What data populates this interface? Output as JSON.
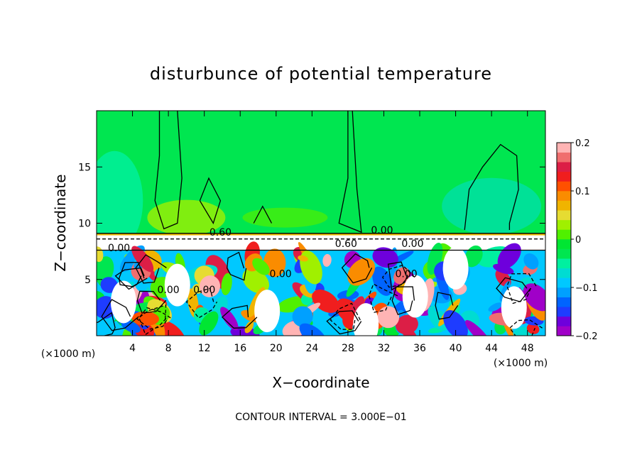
{
  "chart_data": {
    "type": "heatmap",
    "title": "disturbunce of potential temperature",
    "xlabel": "X−coordinate",
    "ylabel": "Z−coordinate",
    "x_unit": "(×1000 m)",
    "y_unit": "(×1000 m)",
    "xlim": [
      0,
      50
    ],
    "ylim": [
      0,
      20
    ],
    "x_ticks": [
      4,
      8,
      12,
      16,
      20,
      24,
      28,
      32,
      36,
      40,
      44,
      48
    ],
    "y_ticks": [
      5,
      10,
      15
    ],
    "note": "CONTOUR INTERVAL = 3.000E−01",
    "colorbar": {
      "range": [
        -0.2,
        0.2
      ],
      "tick_values": [
        0.2,
        0.1,
        0,
        -0.1,
        -0.2
      ],
      "tick_labels": [
        "0.2",
        "0.1",
        "0",
        "−0.1",
        "−0.2"
      ],
      "colors": [
        "#a000c8",
        "#6e00dc",
        "#1e3cff",
        "#0064ff",
        "#00a0ff",
        "#00c8ff",
        "#00dcd2",
        "#00f0a0",
        "#00e650",
        "#00e632",
        "#50f000",
        "#a0f000",
        "#e6dc32",
        "#f0b400",
        "#fa8c00",
        "#ff5000",
        "#f01e1e",
        "#dc1e46",
        "#f06e6e",
        "#ffb4b4"
      ]
    },
    "contour_labels": [
      {
        "text": "0.60",
        "x": 13.8,
        "y": 8.9
      },
      {
        "text": "0.00",
        "x": 31.8,
        "y": 9.1
      },
      {
        "text": "0.60",
        "x": 27.8,
        "y": 7.9
      },
      {
        "text": "0.00",
        "x": 35.2,
        "y": 7.9
      },
      {
        "text": "0.00",
        "x": 2.5,
        "y": 7.5
      },
      {
        "text": "0.00",
        "x": 8.0,
        "y": 3.8
      },
      {
        "text": "0.00",
        "x": 12.0,
        "y": 3.8
      },
      {
        "text": "0.00",
        "x": 20.5,
        "y": 5.2
      },
      {
        "text": "0.00",
        "x": 34.5,
        "y": 5.2
      }
    ]
  }
}
